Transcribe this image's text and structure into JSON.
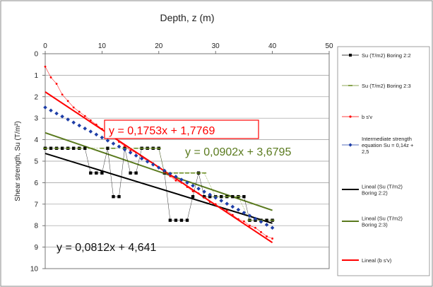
{
  "chart_data": {
    "type": "scatter",
    "title": "Depth,  z (m)",
    "xlabel": "",
    "ylabel": "Shear strength, Su  (T/m²)",
    "x_ticks": [
      0,
      10,
      20,
      30,
      40,
      50
    ],
    "y_ticks": [
      0,
      1,
      2,
      3,
      4,
      5,
      6,
      7,
      8,
      9,
      10
    ],
    "xlim": [
      0,
      50
    ],
    "ylim": [
      0,
      10
    ],
    "y_inverted": true,
    "x_axis_position": "top",
    "grid": "horizontal",
    "legend_position": "right",
    "series": [
      {
        "name": "Su (T/m2) Boring 2:2",
        "kind": "markers",
        "color": "#000000",
        "marker": "square",
        "points": [
          [
            0,
            4.4
          ],
          [
            1,
            4.4
          ],
          [
            2,
            4.4
          ],
          [
            3,
            4.4
          ],
          [
            4,
            4.4
          ],
          [
            5,
            4.4
          ],
          [
            6,
            4.4
          ],
          [
            7,
            4.4
          ],
          [
            8,
            5.55
          ],
          [
            9,
            5.55
          ],
          [
            10,
            5.55
          ],
          [
            11,
            4.4
          ],
          [
            12,
            6.65
          ],
          [
            13,
            6.65
          ],
          [
            14,
            4.4
          ],
          [
            15,
            5.55
          ],
          [
            16,
            5.55
          ],
          [
            17,
            4.4
          ],
          [
            18,
            4.4
          ],
          [
            19,
            4.4
          ],
          [
            20,
            4.4
          ],
          [
            21,
            5.55
          ],
          [
            22,
            7.75
          ],
          [
            23,
            7.75
          ],
          [
            24,
            7.75
          ],
          [
            25,
            7.75
          ],
          [
            26,
            6.65
          ],
          [
            27,
            5.55
          ],
          [
            28,
            6.65
          ],
          [
            29,
            6.65
          ],
          [
            30,
            6.65
          ],
          [
            31,
            6.65
          ],
          [
            32,
            6.65
          ],
          [
            33,
            6.65
          ],
          [
            34,
            6.65
          ],
          [
            35,
            6.65
          ],
          [
            36,
            7.75
          ],
          [
            37,
            7.75
          ],
          [
            38,
            7.75
          ],
          [
            39,
            7.75
          ],
          [
            40,
            7.75
          ]
        ]
      },
      {
        "name": "Su (T/m2) Boring 2:3",
        "kind": "markers",
        "color": "#6b8e23",
        "marker": "dash",
        "points": [
          [
            0,
            4.4
          ],
          [
            2,
            4.4
          ],
          [
            4,
            4.4
          ],
          [
            6,
            4.4
          ],
          [
            8,
            4.4
          ],
          [
            10,
            4.4
          ],
          [
            12,
            4.4
          ],
          [
            14,
            4.4
          ],
          [
            16,
            4.4
          ],
          [
            17,
            4.4
          ],
          [
            18,
            4.4
          ],
          [
            19,
            4.4
          ],
          [
            20,
            4.4
          ],
          [
            21,
            5.55
          ],
          [
            22,
            5.55
          ],
          [
            23,
            5.55
          ],
          [
            24,
            5.55
          ],
          [
            25,
            5.55
          ],
          [
            26,
            5.55
          ],
          [
            27,
            5.55
          ],
          [
            28,
            5.55
          ],
          [
            30,
            6.65
          ],
          [
            32,
            6.65
          ],
          [
            34,
            6.65
          ],
          [
            36,
            7.75
          ],
          [
            38,
            7.75
          ],
          [
            40,
            7.75
          ]
        ]
      },
      {
        "name": "b s'v",
        "kind": "markers",
        "color": "#ff0000",
        "marker": "dot",
        "points": [
          [
            0,
            0.6
          ],
          [
            1,
            1.1
          ],
          [
            2,
            1.4
          ],
          [
            3,
            1.9
          ],
          [
            4,
            2.2
          ],
          [
            5,
            2.5
          ],
          [
            6,
            2.7
          ],
          [
            7,
            2.9
          ],
          [
            8,
            3.1
          ],
          [
            9,
            3.3
          ],
          [
            10,
            3.5
          ],
          [
            11,
            3.7
          ],
          [
            12,
            3.9
          ],
          [
            13,
            4.1
          ],
          [
            14,
            4.3
          ],
          [
            15,
            4.5
          ],
          [
            16,
            4.6
          ],
          [
            17,
            4.8
          ],
          [
            18,
            5.0
          ],
          [
            19,
            5.1
          ],
          [
            20,
            5.3
          ],
          [
            21,
            5.5
          ],
          [
            22,
            5.7
          ],
          [
            23,
            5.9
          ],
          [
            24,
            6.0
          ],
          [
            25,
            6.2
          ],
          [
            26,
            6.4
          ],
          [
            27,
            6.5
          ],
          [
            28,
            6.7
          ],
          [
            29,
            6.9
          ],
          [
            30,
            7.0
          ],
          [
            31,
            7.2
          ],
          [
            32,
            7.3
          ],
          [
            33,
            7.5
          ],
          [
            34,
            7.7
          ],
          [
            35,
            7.8
          ],
          [
            36,
            8.0
          ],
          [
            37,
            8.1
          ],
          [
            38,
            8.3
          ],
          [
            39,
            8.5
          ],
          [
            40,
            8.6
          ]
        ]
      },
      {
        "name": "Intermediate strength equation Su = 0,14z + 2,5",
        "kind": "markers",
        "color": "#1f3fa8",
        "marker": "diamond",
        "points": [
          [
            0,
            2.5
          ],
          [
            1,
            2.64
          ],
          [
            2,
            2.78
          ],
          [
            3,
            2.92
          ],
          [
            4,
            3.06
          ],
          [
            5,
            3.2
          ],
          [
            6,
            3.34
          ],
          [
            7,
            3.48
          ],
          [
            8,
            3.62
          ],
          [
            9,
            3.76
          ],
          [
            10,
            3.9
          ],
          [
            11,
            4.04
          ],
          [
            12,
            4.18
          ],
          [
            13,
            4.32
          ],
          [
            14,
            4.46
          ],
          [
            15,
            4.6
          ],
          [
            16,
            4.74
          ],
          [
            17,
            4.88
          ],
          [
            18,
            5.02
          ],
          [
            19,
            5.16
          ],
          [
            20,
            5.3
          ],
          [
            21,
            5.44
          ],
          [
            22,
            5.58
          ],
          [
            23,
            5.72
          ],
          [
            24,
            5.86
          ],
          [
            25,
            6.0
          ],
          [
            26,
            6.14
          ],
          [
            27,
            6.28
          ],
          [
            28,
            6.42
          ],
          [
            29,
            6.56
          ],
          [
            30,
            6.7
          ],
          [
            31,
            6.84
          ],
          [
            32,
            6.98
          ],
          [
            33,
            7.12
          ],
          [
            34,
            7.26
          ],
          [
            35,
            7.4
          ],
          [
            36,
            7.54
          ],
          [
            37,
            7.68
          ],
          [
            38,
            7.82
          ],
          [
            39,
            7.96
          ],
          [
            40,
            8.1
          ]
        ]
      },
      {
        "name": "Lineal (Su (T/m2) Boring 2:2)",
        "kind": "line",
        "color": "#000000",
        "slope": 0.0812,
        "intercept": 4.641,
        "x_range": [
          0,
          40
        ]
      },
      {
        "name": "Lineal (Su (T/m2) Boring 2:3)",
        "kind": "line",
        "color": "#5a7a1e",
        "slope": 0.0902,
        "intercept": 3.6795,
        "x_range": [
          0,
          40
        ]
      },
      {
        "name": "Lineal (b s'v)",
        "kind": "line",
        "color": "#ff0000",
        "slope": 0.1753,
        "intercept": 1.7769,
        "x_range": [
          0,
          40
        ]
      }
    ],
    "annotations": [
      {
        "text": "y = 0,1753x + 1,7769",
        "color": "#ff0000",
        "boxed": true
      },
      {
        "text": "y = 0,0902x + 3,6795",
        "color": "#5a7a1e",
        "boxed": false
      },
      {
        "text": "y = 0,0812x + 4,641",
        "color": "#111111",
        "boxed": false
      }
    ]
  }
}
